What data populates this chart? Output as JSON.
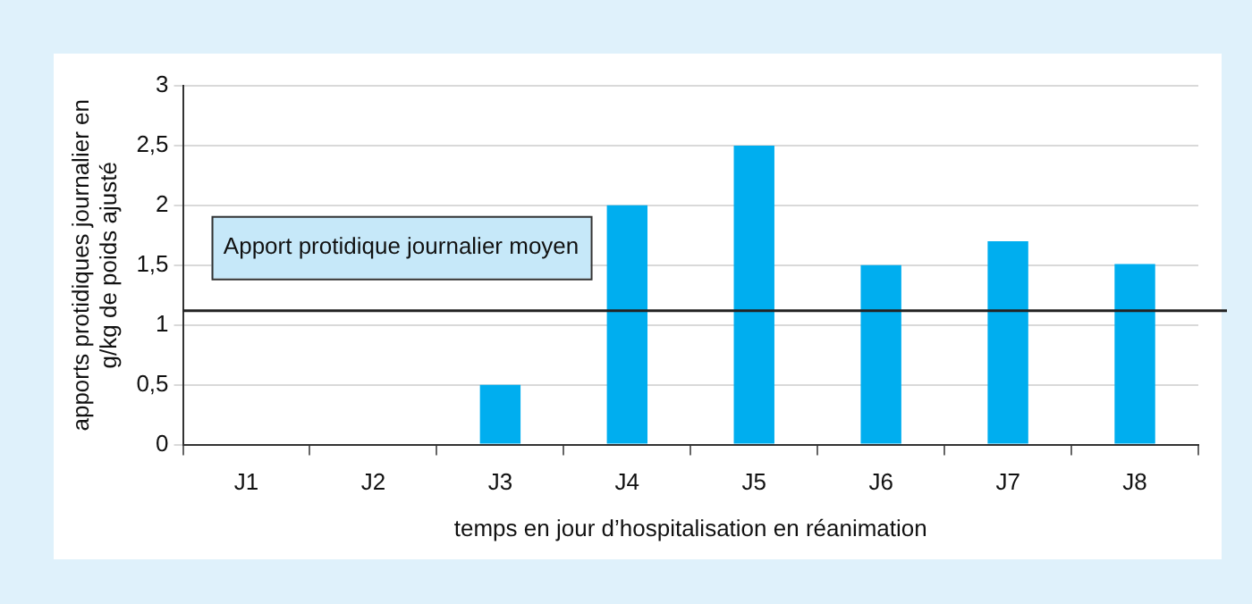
{
  "chart_data": {
    "type": "bar",
    "xlabel": "temps en jour d’hospitalisation en réanimation",
    "ylabel": "apports protidiques journalier en g/kg de poids ajusté",
    "categories": [
      "J1",
      "J2",
      "J3",
      "J4",
      "J5",
      "J6",
      "J7",
      "J8"
    ],
    "values": [
      0,
      0,
      0.5,
      2,
      2.5,
      1.5,
      1.7,
      1.51
    ],
    "color": "#00aeef",
    "ylim": [
      0,
      3
    ],
    "yticks": [
      0,
      {
        "value": 0.5,
        "label": "0,5"
      },
      1,
      {
        "value": 1.5,
        "label": "1,5"
      },
      2,
      {
        "value": 2.5,
        "label": "2,5"
      },
      3
    ],
    "grid": "y",
    "legend": false,
    "ref_lines": [
      {
        "axis": "y",
        "value": 1.12,
        "label": "Apport protidique journalier moyen",
        "color": "#222222"
      }
    ]
  }
}
